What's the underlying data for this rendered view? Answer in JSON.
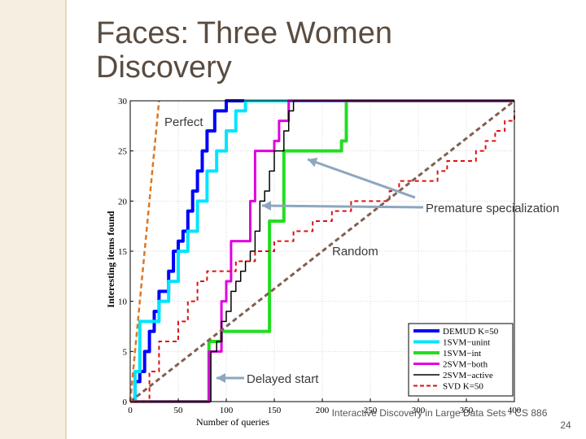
{
  "slide": {
    "title": "Faces: Three Women\nDiscovery",
    "footer": "Interactive Discovery in Large Data Sets - CS 886",
    "page_number": "24"
  },
  "annotations": {
    "perfect": "Perfect",
    "premature": "Premature specialization",
    "random": "Random",
    "delayed": "Delayed start"
  },
  "colors": {
    "DEMUD": "#0000ff",
    "1SVM_unint": "#00e5ff",
    "1SVM_int": "#22dd22",
    "2SVM_both": "#e000e0",
    "2SVM_active": "#000000",
    "SVD": "#dd1111",
    "random": "#806050",
    "perfect": "#dd7722",
    "arrow": "#8ea6bf"
  },
  "chart_data": {
    "type": "line",
    "xlabel": "Number of queries",
    "ylabel": "Interesting items found",
    "xlim": [
      0,
      400
    ],
    "ylim": [
      0,
      30
    ],
    "xticks": [
      "0",
      "50",
      "100",
      "150",
      "200",
      "250",
      "300",
      "350",
      "400"
    ],
    "yticks": [
      "0",
      "5",
      "10",
      "15",
      "20",
      "25",
      "30"
    ],
    "grid": true,
    "legend_position": "bottom-right",
    "series": [
      {
        "name": "DEMUD K=50",
        "key": "DEMUD",
        "style": "solid",
        "width": 4,
        "points": [
          [
            0,
            0
          ],
          [
            5,
            2
          ],
          [
            10,
            3
          ],
          [
            15,
            5
          ],
          [
            20,
            7
          ],
          [
            25,
            9
          ],
          [
            30,
            11
          ],
          [
            40,
            13
          ],
          [
            45,
            15
          ],
          [
            50,
            16
          ],
          [
            55,
            17
          ],
          [
            60,
            19
          ],
          [
            65,
            21
          ],
          [
            70,
            23
          ],
          [
            75,
            25
          ],
          [
            80,
            27
          ],
          [
            88,
            29
          ],
          [
            100,
            30
          ],
          [
            400,
            30
          ]
        ]
      },
      {
        "name": "1SVM−unint",
        "key": "1SVM_unint",
        "style": "solid",
        "width": 4,
        "points": [
          [
            0,
            0
          ],
          [
            5,
            3
          ],
          [
            10,
            8
          ],
          [
            25,
            8
          ],
          [
            30,
            10
          ],
          [
            40,
            12
          ],
          [
            50,
            15
          ],
          [
            60,
            17
          ],
          [
            70,
            20
          ],
          [
            80,
            23
          ],
          [
            90,
            25
          ],
          [
            100,
            27
          ],
          [
            110,
            29
          ],
          [
            120,
            30
          ],
          [
            400,
            30
          ]
        ]
      },
      {
        "name": "1SVM−int",
        "key": "1SVM_int",
        "style": "solid",
        "width": 4,
        "points": [
          [
            0,
            0
          ],
          [
            80,
            0
          ],
          [
            82,
            6
          ],
          [
            90,
            6
          ],
          [
            95,
            7
          ],
          [
            140,
            7
          ],
          [
            145,
            18
          ],
          [
            150,
            18
          ],
          [
            160,
            25
          ],
          [
            190,
            25
          ],
          [
            220,
            26
          ],
          [
            225,
            30
          ],
          [
            400,
            30
          ]
        ]
      },
      {
        "name": "2SVM−both",
        "key": "2SVM_both",
        "style": "solid",
        "width": 3,
        "points": [
          [
            0,
            0
          ],
          [
            80,
            0
          ],
          [
            82,
            5
          ],
          [
            90,
            5
          ],
          [
            95,
            10
          ],
          [
            100,
            12
          ],
          [
            105,
            16
          ],
          [
            120,
            16
          ],
          [
            125,
            20
          ],
          [
            130,
            25
          ],
          [
            145,
            25
          ],
          [
            150,
            26
          ],
          [
            155,
            28
          ],
          [
            165,
            30
          ],
          [
            400,
            30
          ]
        ]
      },
      {
        "name": "2SVM−active",
        "key": "2SVM_active",
        "style": "solid",
        "width": 1.5,
        "points": [
          [
            0,
            0
          ],
          [
            80,
            0
          ],
          [
            84,
            5
          ],
          [
            90,
            6
          ],
          [
            95,
            8
          ],
          [
            100,
            9
          ],
          [
            105,
            11
          ],
          [
            110,
            12
          ],
          [
            115,
            13
          ],
          [
            120,
            14
          ],
          [
            125,
            15
          ],
          [
            130,
            17
          ],
          [
            135,
            20
          ],
          [
            140,
            21
          ],
          [
            145,
            23
          ],
          [
            150,
            25
          ],
          [
            160,
            27
          ],
          [
            165,
            29
          ],
          [
            170,
            30
          ],
          [
            400,
            30
          ]
        ]
      },
      {
        "name": "SVD K=50",
        "key": "SVD",
        "style": "dashed",
        "width": 2,
        "points": [
          [
            0,
            0
          ],
          [
            10,
            0
          ],
          [
            20,
            3
          ],
          [
            30,
            6
          ],
          [
            40,
            6
          ],
          [
            50,
            8
          ],
          [
            60,
            10
          ],
          [
            70,
            12
          ],
          [
            80,
            13
          ],
          [
            90,
            13
          ],
          [
            110,
            14
          ],
          [
            120,
            14
          ],
          [
            130,
            15
          ],
          [
            150,
            16
          ],
          [
            170,
            17
          ],
          [
            190,
            18
          ],
          [
            210,
            19
          ],
          [
            230,
            20
          ],
          [
            250,
            20
          ],
          [
            270,
            21
          ],
          [
            280,
            22
          ],
          [
            300,
            22
          ],
          [
            320,
            23
          ],
          [
            330,
            24
          ],
          [
            350,
            24
          ],
          [
            360,
            25
          ],
          [
            370,
            26
          ],
          [
            380,
            27
          ],
          [
            390,
            28
          ],
          [
            400,
            29
          ]
        ]
      },
      {
        "name": "",
        "key": "random",
        "style": "dashed",
        "width": 3,
        "legend": false,
        "points": [
          [
            0,
            0
          ],
          [
            400,
            30
          ]
        ]
      },
      {
        "name": "",
        "key": "perfect",
        "style": "dashed",
        "width": 2.5,
        "legend": false,
        "points": [
          [
            0,
            0
          ],
          [
            30,
            30
          ]
        ]
      }
    ]
  }
}
